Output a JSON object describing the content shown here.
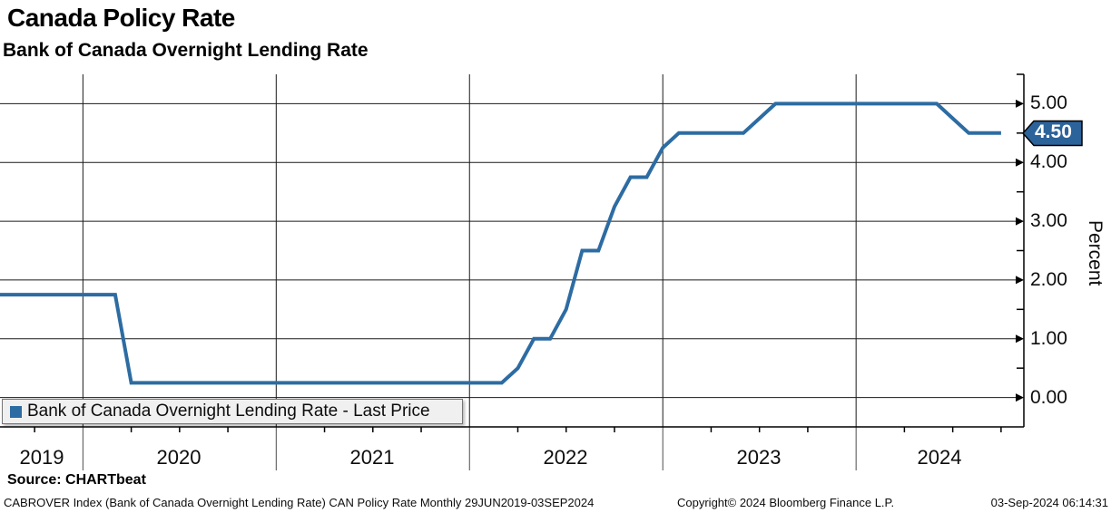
{
  "header": {
    "title": "Canada Policy Rate",
    "subtitle": "Bank of Canada Overnight Lending Rate"
  },
  "legend": {
    "label": "Bank of Canada Overnight Lending Rate - Last Price",
    "marker_color": "#2d6ca2"
  },
  "last_price": {
    "value": "4.50",
    "bg": "#2c639a"
  },
  "y_axis": {
    "title": "Percent",
    "ticks": [
      "5.00",
      "4.00",
      "3.00",
      "2.00",
      "1.00",
      "0.00"
    ]
  },
  "x_axis": {
    "years": [
      "2019",
      "2020",
      "2021",
      "2022",
      "2023",
      "2024"
    ]
  },
  "source": "Source: CHARTbeat",
  "footer": {
    "left": "CABROVER Index (Bank of Canada Overnight Lending Rate) CAN Policy Rate  Monthly 29JUN2019-03SEP2024",
    "center": "Copyright© 2024 Bloomberg Finance L.P.",
    "right": "03-Sep-2024 06:14:31"
  },
  "chart_data": {
    "type": "line",
    "title": "Canada Policy Rate",
    "subtitle": "Bank of Canada Overnight Lending Rate",
    "xlabel": "",
    "ylabel": "Percent",
    "xlim": [
      2019.571,
      2024.868
    ],
    "ylim": [
      -0.5,
      5.5
    ],
    "grid": true,
    "legend_position": "bottom-left",
    "period": "Monthly",
    "date_range": "29JUN2019-03SEP2024",
    "last_price": 4.5,
    "line_color": "#2d6ca2",
    "y_major_ticks": [
      0,
      1,
      2,
      3,
      4,
      5
    ],
    "y_minor_ticks": [
      0.5,
      1.5,
      2.5,
      3.5,
      4.5
    ],
    "x_year_boundaries": [
      2020,
      2021,
      2022,
      2023,
      2024
    ],
    "x_minor_step_years": 0.25,
    "series": [
      {
        "name": "Bank of Canada Overnight Lending Rate - Last Price",
        "color": "#2d6ca2",
        "points": [
          [
            2019.5,
            1.75
          ],
          [
            2020.167,
            1.75
          ],
          [
            2020.25,
            0.25
          ],
          [
            2022.167,
            0.25
          ],
          [
            2022.25,
            0.5
          ],
          [
            2022.333,
            1.0
          ],
          [
            2022.417,
            1.0
          ],
          [
            2022.5,
            1.5
          ],
          [
            2022.583,
            2.5
          ],
          [
            2022.667,
            2.5
          ],
          [
            2022.75,
            3.25
          ],
          [
            2022.833,
            3.75
          ],
          [
            2022.917,
            3.75
          ],
          [
            2023.0,
            4.25
          ],
          [
            2023.083,
            4.5
          ],
          [
            2023.417,
            4.5
          ],
          [
            2023.5,
            4.75
          ],
          [
            2023.583,
            5.0
          ],
          [
            2024.417,
            5.0
          ],
          [
            2024.5,
            4.75
          ],
          [
            2024.583,
            4.5
          ],
          [
            2024.75,
            4.5
          ]
        ]
      }
    ]
  }
}
